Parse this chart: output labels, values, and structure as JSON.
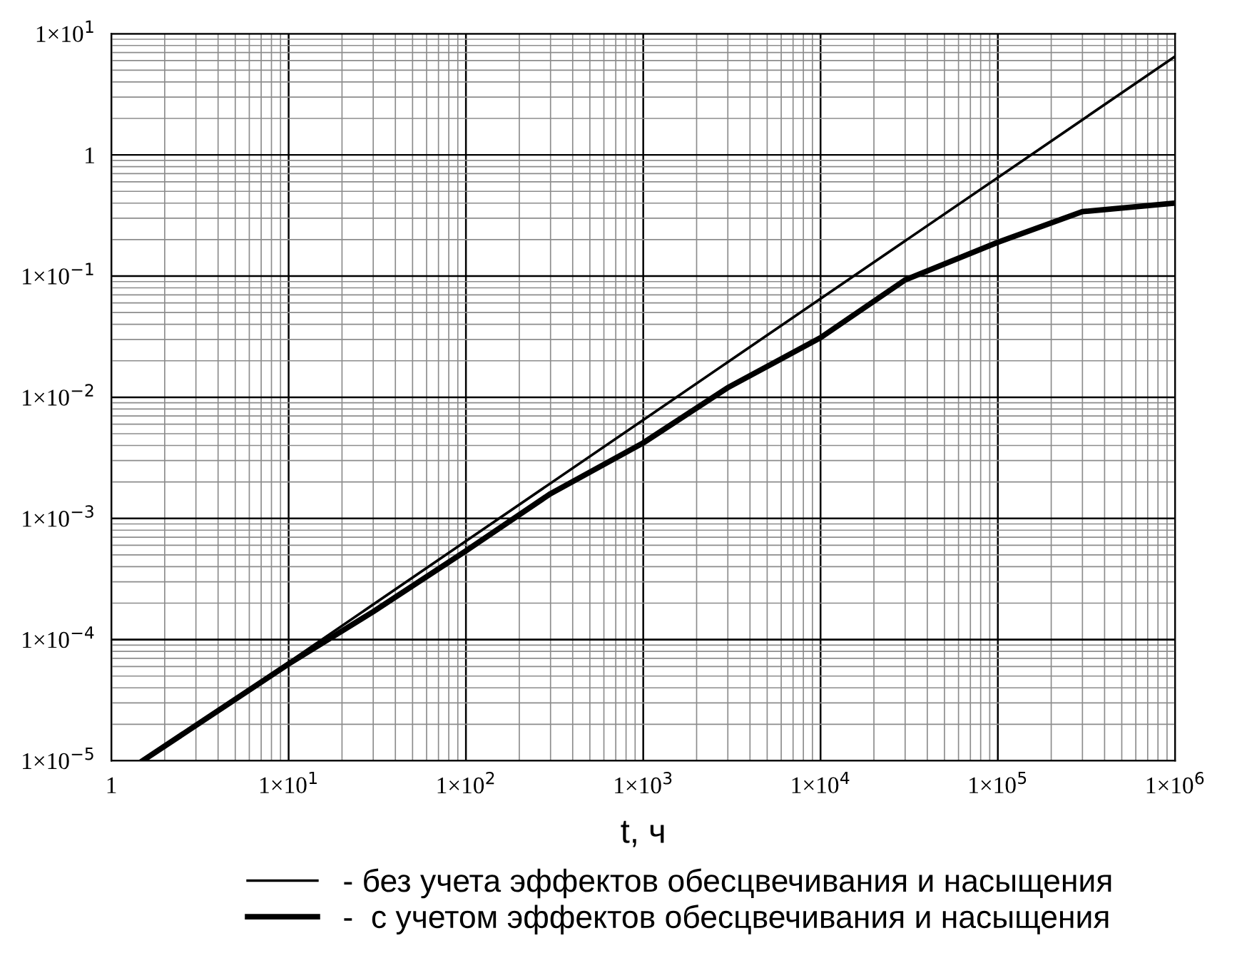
{
  "chart_data": {
    "type": "line",
    "xlabel": "t, ч",
    "log": "xy",
    "grid": true,
    "legend": "bottom",
    "xlim": [
      1,
      1000000
    ],
    "ylim": [
      1e-05,
      10
    ],
    "xticks": [
      1,
      {
        "value": 10,
        "label": "1×10$^{1}$"
      },
      {
        "value": 100,
        "label": "1×10$^{2}$"
      },
      {
        "value": 1000,
        "label": "1×10$^{3}$"
      },
      {
        "value": 10000,
        "label": "1×10$^{4}$"
      },
      {
        "value": 100000,
        "label": "1×10$^{5}$"
      },
      {
        "value": 1000000,
        "label": "1×10$^{6}$"
      }
    ],
    "yticks": [
      {
        "value": 1e-05,
        "label": "1×10$^{−5}$"
      },
      {
        "value": 0.0001,
        "label": "1×10$^{−4}$"
      },
      {
        "value": 0.001,
        "label": "1×10$^{−3}$"
      },
      {
        "value": 0.01,
        "label": "1×10$^{−2}$"
      },
      {
        "value": 0.1,
        "label": "1×10$^{−1}$"
      },
      1,
      {
        "value": 10,
        "label": "1×10$^{1}$"
      }
    ],
    "series": [
      {
        "name": "- без учета эффектов обесцвечивания и насыщения",
        "color": "#000000",
        "x": [
          1.5,
          10,
          100,
          1000,
          10000,
          100000,
          1000000
        ],
        "values": [
          1e-05,
          6.5e-05,
          0.00065,
          0.0065,
          0.065,
          0.65,
          6.5
        ]
      },
      {
        "name": "-  с учетом эффектов обесцвечивания и насыщения",
        "color": "#000000",
        "x": [
          1.5,
          10,
          30,
          100,
          300,
          1000,
          3000,
          10000,
          30000,
          100000,
          300000,
          1000000
        ],
        "values": [
          1e-05,
          6.3e-05,
          0.00017,
          0.00054,
          0.0016,
          0.0042,
          0.012,
          0.031,
          0.093,
          0.19,
          0.34,
          0.4
        ]
      }
    ]
  }
}
